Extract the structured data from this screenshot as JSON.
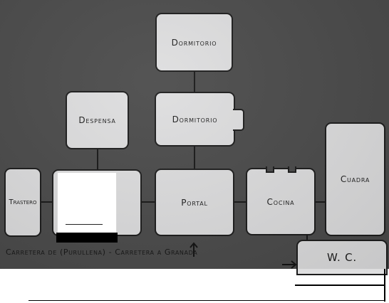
{
  "rooms": {
    "dormitorio_top": "Dormitorio",
    "dormitorio_mid": "Dormitorio",
    "despensa": "Despensa",
    "trastero": "Trastero",
    "portal": "Portal",
    "cocina": "Cocina",
    "cuadra": "Cuadra",
    "wc": "W. C."
  },
  "road_label": "Carretera de (Purullena) - Carretera a Granada",
  "colors": {
    "room_fill": "#dededf",
    "outline": "#1b1b1b",
    "background": "#4a4a4a"
  }
}
